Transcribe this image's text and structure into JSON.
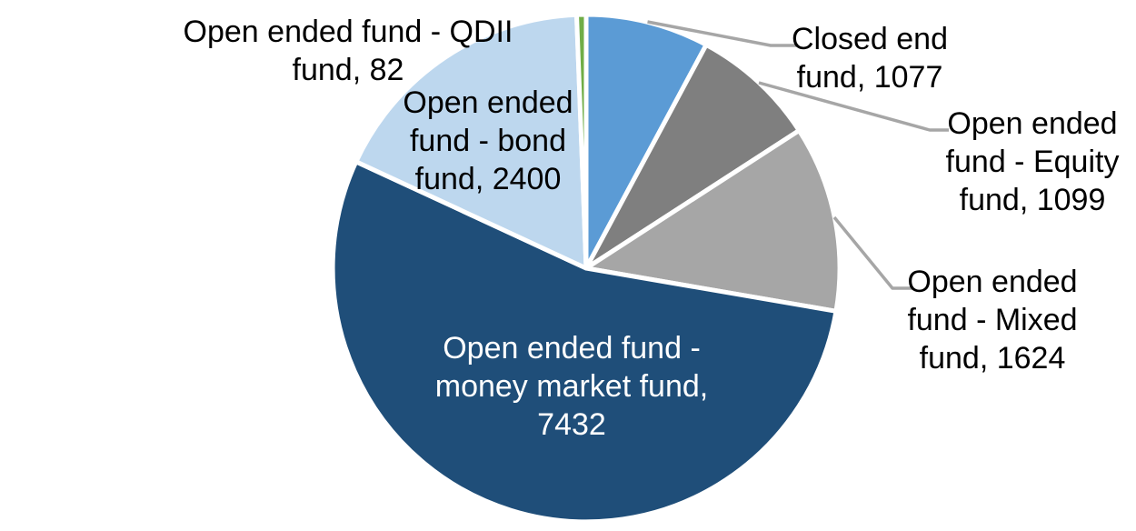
{
  "chart_data": {
    "type": "pie",
    "title": "",
    "total": 13714,
    "direction": "clockwise",
    "start_angle_deg": 0,
    "background_color": "#FFFFFF",
    "slice_border_color": "#FFFFFF",
    "leader_line_color": "#A6A6A6",
    "slices": [
      {
        "id": "closed-end-fund",
        "label": "Closed end fund",
        "value": 1077,
        "color": "#5B9BD5",
        "label_color": "#000000",
        "label_lines": [
          "Closed end",
          "fund, 1077"
        ]
      },
      {
        "id": "equity-fund",
        "label": "Open ended fund - Equity fund",
        "value": 1099,
        "color": "#7F7F7F",
        "label_color": "#000000",
        "label_lines": [
          "Open ended",
          "fund - Equity",
          "fund, 1099"
        ]
      },
      {
        "id": "mixed-fund",
        "label": "Open ended fund - Mixed fund",
        "value": 1624,
        "color": "#A6A6A6",
        "label_color": "#000000",
        "label_lines": [
          "Open ended",
          "fund - Mixed",
          "fund, 1624"
        ]
      },
      {
        "id": "money-market-fund",
        "label": "Open ended fund - money market fund",
        "value": 7432,
        "color": "#1F4E79",
        "label_color": "#FFFFFF",
        "label_lines": [
          "Open ended fund -",
          "money market fund,",
          "7432"
        ]
      },
      {
        "id": "bond-fund",
        "label": "Open ended fund - bond fund",
        "value": 2400,
        "color": "#BDD7EE",
        "label_color": "#000000",
        "label_lines": [
          "Open ended",
          "fund - bond",
          "fund, 2400"
        ]
      },
      {
        "id": "qdii-fund",
        "label": "Open ended fund - QDII fund",
        "value": 82,
        "color": "#70AD47",
        "label_color": "#000000",
        "label_lines": [
          "Open ended fund - QDII",
          "fund, 82"
        ]
      }
    ]
  }
}
